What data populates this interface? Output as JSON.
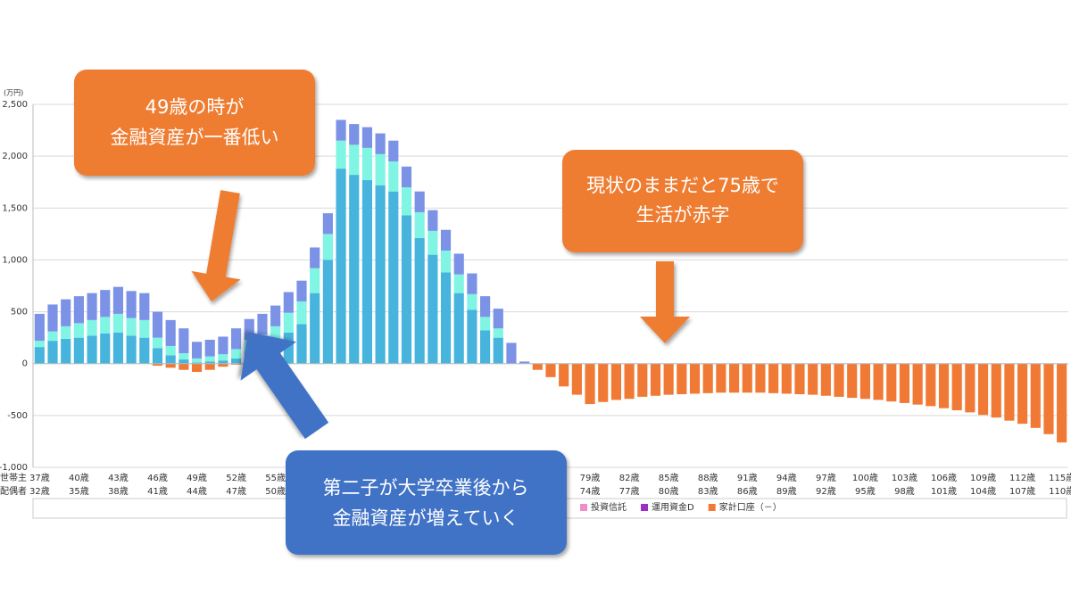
{
  "chart_data": {
    "type": "bar",
    "stacked": true,
    "y_unit": "(万円)",
    "ylim": [
      -1000,
      2500
    ],
    "yticks": [
      {
        "value": -1000,
        "label": "-1,000"
      },
      -500,
      0,
      500,
      {
        "value": 1000,
        "label": "1,000"
      },
      {
        "value": 1500,
        "label": "1,500"
      },
      {
        "value": 2000,
        "label": "2,000"
      },
      {
        "value": 2500,
        "label": "2,500"
      }
    ],
    "grid": true,
    "category_rows": [
      "世帯主",
      "配偶者"
    ],
    "categories": [
      "37歳",
      null,
      null,
      "40歳",
      null,
      null,
      "43歳",
      null,
      null,
      "46歳",
      null,
      null,
      "49歳",
      null,
      null,
      "52歳",
      null,
      null,
      "55歳",
      null,
      null,
      null,
      null,
      null,
      null,
      null,
      null,
      null,
      null,
      null,
      null,
      null,
      null,
      null,
      null,
      null,
      null,
      null,
      null,
      null,
      null,
      null,
      "79歳",
      null,
      null,
      "82歳",
      null,
      null,
      "85歳",
      null,
      null,
      "88歳",
      null,
      null,
      "91歳",
      null,
      null,
      "94歳",
      null,
      null,
      "97歳",
      null,
      null,
      "100歳",
      null,
      null,
      "103歳",
      null,
      null,
      "106歳",
      null,
      null,
      "109歳",
      null,
      null,
      "112歳",
      null,
      null,
      "115歳"
    ],
    "categories2": [
      "32歳",
      null,
      null,
      "35歳",
      null,
      null,
      "38歳",
      null,
      null,
      "41歳",
      null,
      null,
      "44歳",
      null,
      null,
      "47歳",
      null,
      null,
      "50歳",
      null,
      null,
      null,
      null,
      null,
      null,
      null,
      null,
      null,
      null,
      null,
      null,
      null,
      null,
      null,
      null,
      null,
      null,
      null,
      null,
      null,
      null,
      null,
      "74歳",
      null,
      null,
      "77歳",
      null,
      null,
      "80歳",
      null,
      null,
      "83歳",
      null,
      null,
      "86歳",
      null,
      null,
      "89歳",
      null,
      null,
      "92歳",
      null,
      null,
      "95歳",
      null,
      null,
      "98歳",
      null,
      null,
      "101歳",
      null,
      null,
      "104歳",
      null,
      null,
      "107歳",
      null,
      null,
      "110歳"
    ],
    "series": [
      {
        "color": "#46b4dc",
        "values": [
          160,
          220,
          240,
          250,
          270,
          290,
          300,
          270,
          250,
          150,
          80,
          40,
          10,
          20,
          30,
          50,
          120,
          150,
          200,
          300,
          380,
          680,
          1000,
          1880,
          1820,
          1770,
          1720,
          1660,
          1430,
          1210,
          1050,
          880,
          680,
          520,
          320,
          250,
          0,
          0,
          0,
          0,
          0,
          0,
          0,
          0,
          0,
          0,
          0,
          0,
          0,
          0,
          0,
          0,
          0,
          0,
          0,
          0,
          0,
          0,
          0,
          0,
          0,
          0,
          0,
          0,
          0,
          0,
          0,
          0,
          0,
          0,
          0,
          0,
          0,
          0,
          0,
          0,
          0,
          0,
          0
        ]
      },
      {
        "color": "#80f5e3",
        "values": [
          60,
          90,
          120,
          140,
          150,
          160,
          180,
          170,
          170,
          100,
          90,
          60,
          40,
          50,
          60,
          90,
          110,
          130,
          160,
          190,
          220,
          240,
          250,
          270,
          290,
          310,
          300,
          290,
          270,
          250,
          230,
          210,
          180,
          150,
          130,
          90,
          0,
          0,
          0,
          0,
          0,
          0,
          0,
          0,
          0,
          0,
          0,
          0,
          0,
          0,
          0,
          0,
          0,
          0,
          0,
          0,
          0,
          0,
          0,
          0,
          0,
          0,
          0,
          0,
          0,
          0,
          0,
          0,
          0,
          0,
          0,
          0,
          0,
          0,
          0,
          0,
          0,
          0,
          0
        ]
      },
      {
        "color": "#7b92e6",
        "values": [
          260,
          260,
          260,
          260,
          260,
          260,
          260,
          260,
          260,
          250,
          250,
          240,
          160,
          160,
          170,
          200,
          200,
          200,
          200,
          200,
          200,
          200,
          200,
          200,
          200,
          200,
          200,
          200,
          200,
          200,
          200,
          200,
          200,
          200,
          200,
          190,
          200,
          20,
          0,
          0,
          0,
          0,
          0,
          0,
          0,
          0,
          0,
          0,
          0,
          0,
          0,
          0,
          0,
          0,
          0,
          0,
          0,
          0,
          0,
          0,
          0,
          0,
          0,
          0,
          0,
          0,
          0,
          0,
          0,
          0,
          0,
          0,
          0,
          0,
          0,
          0,
          0,
          0,
          0
        ]
      },
      {
        "name": "投資信託",
        "color": "#f08cc8",
        "values": [
          0,
          0,
          0,
          0,
          0,
          0,
          0,
          0,
          0,
          0,
          0,
          0,
          0,
          0,
          0,
          0,
          0,
          0,
          0,
          0,
          0,
          0,
          0,
          0,
          0,
          0,
          0,
          0,
          0,
          0,
          0,
          0,
          0,
          0,
          0,
          0,
          0,
          0,
          0,
          0,
          0,
          0,
          0,
          0,
          0,
          0,
          0,
          0,
          0,
          0,
          0,
          0,
          0,
          0,
          0,
          0,
          0,
          0,
          0,
          0,
          0,
          0,
          0,
          0,
          0,
          0,
          0,
          0,
          0,
          0,
          0,
          0,
          0,
          0,
          0,
          0,
          0,
          0,
          0
        ]
      },
      {
        "name": "運用資金D",
        "color": "#9b30c8",
        "values": [
          0,
          0,
          0,
          0,
          0,
          0,
          0,
          0,
          0,
          0,
          0,
          0,
          0,
          0,
          0,
          0,
          0,
          0,
          0,
          0,
          0,
          0,
          0,
          0,
          0,
          0,
          0,
          0,
          0,
          0,
          0,
          0,
          0,
          0,
          0,
          0,
          0,
          0,
          0,
          0,
          0,
          0,
          0,
          0,
          0,
          0,
          0,
          0,
          0,
          0,
          0,
          0,
          0,
          0,
          0,
          0,
          0,
          0,
          0,
          0,
          0,
          0,
          0,
          0,
          0,
          0,
          0,
          0,
          0,
          0,
          0,
          0,
          0,
          0,
          0,
          0,
          0,
          0,
          0
        ]
      },
      {
        "name": "家計口座（－）",
        "color": "#f07a35",
        "values": [
          0,
          0,
          0,
          0,
          0,
          0,
          0,
          0,
          0,
          -20,
          -40,
          -60,
          -80,
          -60,
          -30,
          -10,
          0,
          0,
          0,
          0,
          0,
          0,
          0,
          0,
          0,
          0,
          0,
          0,
          0,
          0,
          0,
          0,
          0,
          0,
          0,
          0,
          0,
          0,
          -60,
          -130,
          -220,
          -300,
          -390,
          -370,
          -350,
          -340,
          -320,
          -310,
          -300,
          -295,
          -290,
          -285,
          -280,
          -280,
          -280,
          -280,
          -285,
          -290,
          -295,
          -300,
          -310,
          -320,
          -330,
          -340,
          -350,
          -365,
          -380,
          -395,
          -410,
          -430,
          -450,
          -470,
          -495,
          -520,
          -550,
          -580,
          -620,
          -680,
          -760
        ]
      }
    ],
    "annotations": [
      {
        "lines": [
          "49歳の時が",
          "金融資産が一番低い"
        ]
      },
      {
        "lines": [
          "現状のままだと75歳で",
          "生活が赤字"
        ]
      },
      {
        "lines": [
          "第二子が大学卒業後から",
          "金融資産が増えていく"
        ]
      }
    ]
  }
}
